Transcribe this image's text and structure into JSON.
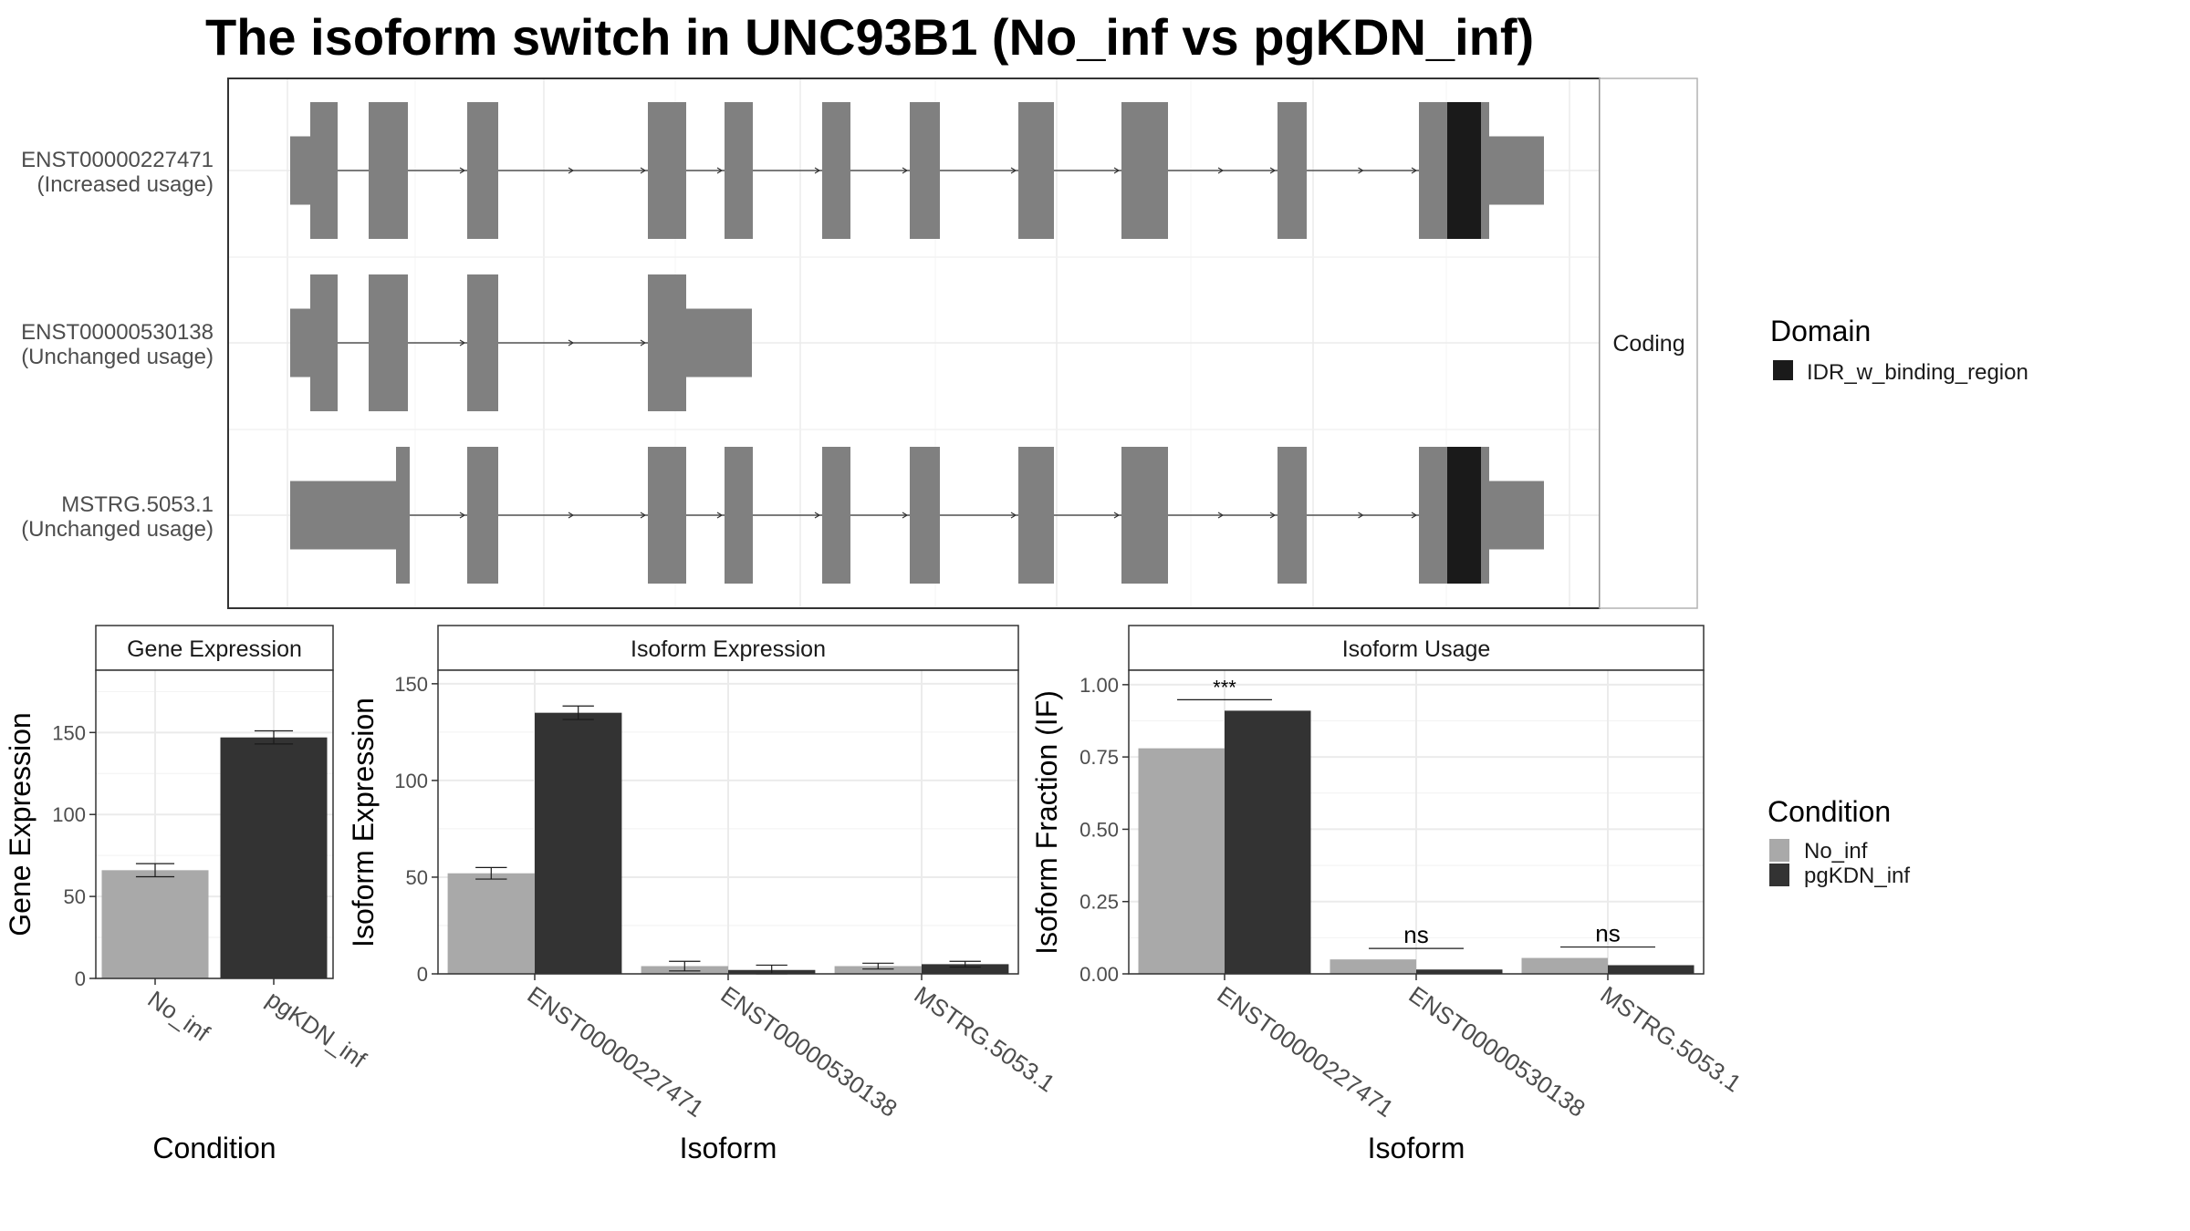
{
  "title": "The isoform switch in UNC93B1 (No_inf vs pgKDN_inf)",
  "colors": {
    "exon": "#808080",
    "domain": "#1a1a1a",
    "no_inf": "#a9a9a9",
    "pgkdn_inf": "#333333",
    "grid_major": "#ebebeb",
    "panel_border": "#333333"
  },
  "transcript_panel": {
    "strip_label": "Coding",
    "transcripts": [
      {
        "id": "ENST00000227471",
        "usage": "(Increased usage)"
      },
      {
        "id": "ENST00000530138",
        "usage": "(Unchanged usage)"
      },
      {
        "id": "MSTRG.5053.1",
        "usage": "(Unchanged usage)"
      }
    ]
  },
  "legends": {
    "domain": {
      "title": "Domain",
      "items": [
        {
          "label": "IDR_w_binding_region",
          "color": "#1a1a1a"
        }
      ]
    },
    "condition": {
      "title": "Condition",
      "items": [
        {
          "label": "No_inf",
          "color": "#a9a9a9"
        },
        {
          "label": "pgKDN_inf",
          "color": "#333333"
        }
      ]
    }
  },
  "chart_data": [
    {
      "type": "bar",
      "title": "Gene Expression",
      "xlabel": "Condition",
      "ylabel": "Gene Expression",
      "categories": [
        "No_inf",
        "pgKDN_inf"
      ],
      "values": [
        66,
        147
      ],
      "errors": [
        4,
        4
      ],
      "ylim": [
        0,
        188
      ],
      "yticks": [
        0,
        50,
        100,
        150
      ],
      "grid": true
    },
    {
      "type": "bar",
      "title": "Isoform Expression",
      "xlabel": "Isoform",
      "ylabel": "Isoform Expression",
      "categories": [
        "ENST00000227471",
        "ENST00000530138",
        "MSTRG.5053.1"
      ],
      "series": [
        {
          "name": "No_inf",
          "values": [
            52,
            4,
            4
          ],
          "errors": [
            3,
            2.5,
            1.5
          ]
        },
        {
          "name": "pgKDN_inf",
          "values": [
            135,
            2,
            5
          ],
          "errors": [
            3.5,
            2.5,
            1.5
          ]
        }
      ],
      "ylim": [
        0,
        157
      ],
      "yticks": [
        0,
        50,
        100,
        150
      ],
      "grid": true
    },
    {
      "type": "bar",
      "title": "Isoform Usage",
      "xlabel": "Isoform",
      "ylabel": "Isoform Fraction (IF)",
      "categories": [
        "ENST00000227471",
        "ENST00000530138",
        "MSTRG.5053.1"
      ],
      "series": [
        {
          "name": "No_inf",
          "values": [
            0.78,
            0.05,
            0.055
          ]
        },
        {
          "name": "pgKDN_inf",
          "values": [
            0.91,
            0.015,
            0.03
          ]
        }
      ],
      "significance": [
        "***",
        "ns",
        "ns"
      ],
      "ylim": [
        0,
        1.05
      ],
      "yticks": [
        "0.00",
        "0.25",
        "0.50",
        "0.75",
        "1.00"
      ],
      "grid": true
    }
  ]
}
